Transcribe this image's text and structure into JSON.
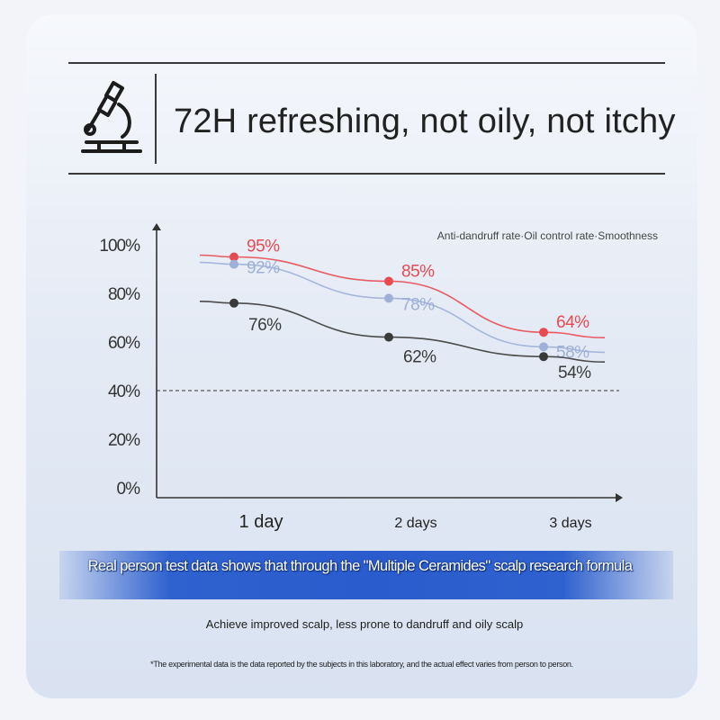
{
  "header": {
    "title": "72H refreshing, not oily, not itchy",
    "icon": "microscope-icon"
  },
  "chart_data": {
    "type": "line",
    "legend": "Anti-dandruff rate·Oil control rate·Smoothness",
    "categories": [
      "1 day",
      "2 days",
      "3 days"
    ],
    "yticks": [
      "0%",
      "20%",
      "40%",
      "60%",
      "80%",
      "100%"
    ],
    "ylim": [
      0,
      100
    ],
    "reference_line": 40,
    "series": [
      {
        "values": [
          95,
          85,
          64
        ],
        "labels": [
          "95%",
          "85%",
          "64%"
        ],
        "color": "#e84a52"
      },
      {
        "values": [
          92,
          78,
          58
        ],
        "labels": [
          "92%",
          "78%",
          "58%"
        ],
        "color": "#9fb0d8"
      },
      {
        "values": [
          76,
          62,
          54
        ],
        "labels": [
          "76%",
          "62%",
          "54%"
        ],
        "color": "#3a3a3a"
      }
    ]
  },
  "banner": {
    "text": "Real person test data shows that through the \"Multiple Ceramides\" scalp research formula"
  },
  "subtitle": "Achieve improved scalp, less prone to dandruff and oily scalp",
  "footnote": "*The experimental data is the data reported by the subjects in this laboratory, and the actual effect varies from person to person."
}
